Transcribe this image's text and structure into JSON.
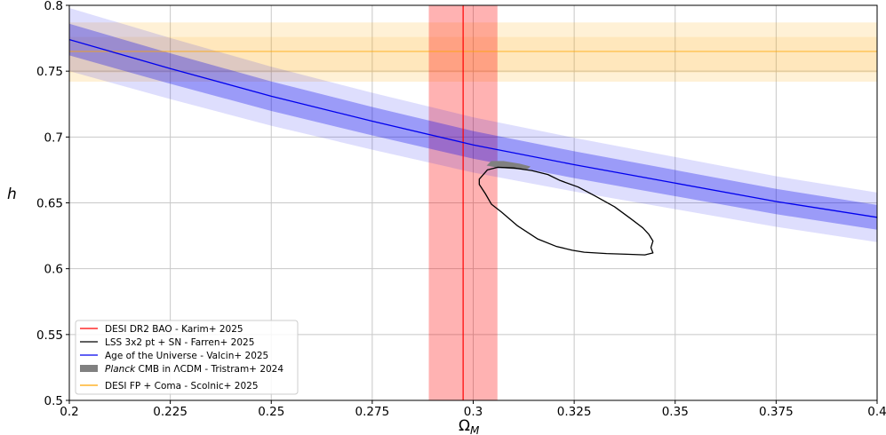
{
  "chart_data": {
    "type": "line",
    "xlabel_main": "Ω",
    "xlabel_sub": "M",
    "ylabel": "h",
    "xlim": [
      0.2,
      0.4
    ],
    "ylim": [
      0.5,
      0.8
    ],
    "grid": true,
    "legend_position": "lower-left",
    "x_ticks": [
      "0.2",
      "0.225",
      "0.25",
      "0.275",
      "0.3",
      "0.325",
      "0.35",
      "0.375",
      "0.4"
    ],
    "y_ticks": [
      "0.5",
      "0.55",
      "0.6",
      "0.65",
      "0.7",
      "0.75",
      "0.8"
    ],
    "series": [
      {
        "name": "DESI DR2 BAO - Karim+ 2025",
        "kind": "vertical-band",
        "color": "#ff0000",
        "center": 0.2975,
        "band_1sigma": [
          0.289,
          0.306
        ]
      },
      {
        "name": "LSS 3x2 pt + SN - Farren+ 2025",
        "kind": "contour",
        "color": "#000000",
        "points": [
          [
            0.3015,
            0.668
          ],
          [
            0.3035,
            0.675
          ],
          [
            0.306,
            0.677
          ],
          [
            0.31,
            0.6765
          ],
          [
            0.3145,
            0.6745
          ],
          [
            0.3185,
            0.6715
          ],
          [
            0.3215,
            0.667
          ],
          [
            0.326,
            0.662
          ],
          [
            0.33,
            0.6555
          ],
          [
            0.335,
            0.647
          ],
          [
            0.339,
            0.638
          ],
          [
            0.342,
            0.631
          ],
          [
            0.3435,
            0.626
          ],
          [
            0.3445,
            0.621
          ],
          [
            0.344,
            0.616
          ],
          [
            0.3445,
            0.612
          ],
          [
            0.3425,
            0.6105
          ],
          [
            0.338,
            0.611
          ],
          [
            0.333,
            0.6115
          ],
          [
            0.3275,
            0.6125
          ],
          [
            0.3245,
            0.614
          ],
          [
            0.3205,
            0.617
          ],
          [
            0.316,
            0.6225
          ],
          [
            0.311,
            0.6325
          ],
          [
            0.307,
            0.643
          ],
          [
            0.3045,
            0.649
          ],
          [
            0.303,
            0.657
          ],
          [
            0.3015,
            0.664
          ],
          [
            0.3015,
            0.668
          ]
        ]
      },
      {
        "name": "Age of the Universe - Valcin+ 2025",
        "kind": "line-with-bands",
        "color": "#0000ee",
        "x": [
          0.2,
          0.225,
          0.25,
          0.275,
          0.3,
          0.325,
          0.35,
          0.375,
          0.4
        ],
        "y": [
          0.774,
          0.752,
          0.731,
          0.712,
          0.694,
          0.679,
          0.665,
          0.651,
          0.639
        ],
        "band_1sigma_halfwidth": [
          0.012,
          0.0116,
          0.0112,
          0.0108,
          0.0105,
          0.0102,
          0.0099,
          0.0096,
          0.0094
        ],
        "band_2sigma_halfwidth": [
          0.024,
          0.0232,
          0.0224,
          0.0216,
          0.021,
          0.0204,
          0.0198,
          0.0192,
          0.0188
        ]
      },
      {
        "name_italic": "Planck",
        "name_rest": " CMB in ΛCDM - Tristram+ 2024",
        "kind": "filled-contour",
        "color": "#808080",
        "points": [
          [
            0.3045,
            0.6815
          ],
          [
            0.3075,
            0.6815
          ],
          [
            0.3115,
            0.6795
          ],
          [
            0.314,
            0.6775
          ],
          [
            0.3135,
            0.676
          ],
          [
            0.31,
            0.676
          ],
          [
            0.306,
            0.677
          ],
          [
            0.3035,
            0.6785
          ],
          [
            0.3045,
            0.6815
          ]
        ]
      },
      {
        "name": "DESI FP + Coma - Scolnic+ 2025",
        "kind": "horizontal-band",
        "color": "#ffa500",
        "center": 0.765,
        "band_1sigma": [
          0.749,
          0.776
        ],
        "band_2sigma": [
          0.742,
          0.787
        ]
      }
    ]
  }
}
